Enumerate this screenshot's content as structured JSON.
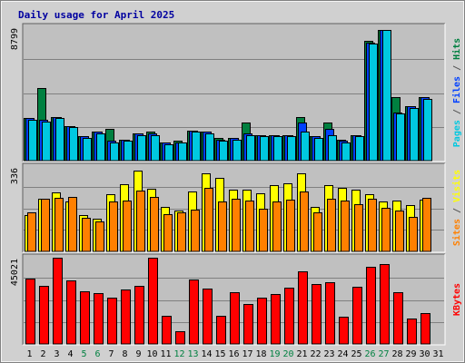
{
  "chart_data": {
    "type": "bar",
    "title": "Daily usage for April 2025",
    "categories": [
      "1",
      "2",
      "3",
      "4",
      "5",
      "6",
      "7",
      "8",
      "9",
      "10",
      "11",
      "12",
      "13",
      "14",
      "15",
      "16",
      "17",
      "18",
      "19",
      "20",
      "21",
      "22",
      "23",
      "24",
      "25",
      "26",
      "27",
      "28",
      "29",
      "30",
      "31"
    ],
    "weekend_days": [
      "5",
      "6",
      "12",
      "13",
      "19",
      "20",
      "26",
      "27"
    ],
    "panels": [
      {
        "id": "hits-files-pages",
        "ymax": 8799,
        "ymax_label": "8799",
        "side_label": [
          {
            "text": "Pages",
            "color": "#00c8e0"
          },
          {
            "text": " / ",
            "color": "#555555"
          },
          {
            "text": "Files",
            "color": "#0040ff"
          },
          {
            "text": " / ",
            "color": "#555555"
          },
          {
            "text": "Hits",
            "color": "#008040"
          }
        ],
        "series": [
          {
            "name": "Hits",
            "color": "#008040",
            "values": [
              2800,
              4800,
              2900,
              2300,
              1600,
              1900,
              2100,
              1400,
              1800,
              1900,
              1200,
              1300,
              2000,
              1900,
              1500,
              1500,
              2500,
              1700,
              1700,
              1700,
              2900,
              1600,
              2500,
              1400,
              1700,
              7900,
              8600,
              4200,
              3600,
              4200,
              0
            ]
          },
          {
            "name": "Files",
            "color": "#0040ff",
            "values": [
              2800,
              2700,
              2900,
              2300,
              1600,
              1900,
              1300,
              1400,
              1800,
              1800,
              1200,
              1200,
              2000,
              1900,
              1400,
              1500,
              1800,
              1700,
              1700,
              1700,
              2500,
              1600,
              2100,
              1300,
              1700,
              7800,
              8600,
              3200,
              3600,
              4200,
              0
            ]
          },
          {
            "name": "Pages",
            "color": "#00c8e0",
            "values": [
              2700,
              2600,
              2800,
              2200,
              1500,
              1800,
              1200,
              1300,
              1700,
              1700,
              1100,
              1200,
              1900,
              1800,
              1300,
              1400,
              1700,
              1600,
              1600,
              1600,
              1900,
              1500,
              1700,
              1200,
              1600,
              7700,
              8600,
              3100,
              3500,
              4100,
              0
            ]
          }
        ]
      },
      {
        "id": "visits-sites",
        "ymax": 336,
        "ymax_label": "336",
        "side_label": [
          {
            "text": "Sites",
            "color": "#ff8000"
          },
          {
            "text": " / ",
            "color": "#555555"
          },
          {
            "text": "Visits",
            "color": "#ffff00"
          }
        ],
        "series": [
          {
            "name": "Visits",
            "color": "#ffff00",
            "values": [
              144,
              210,
              236,
              198,
              145,
              130,
              226,
              268,
              320,
              249,
              177,
              163,
              238,
              312,
              292,
              245,
              244,
              231,
              264,
              270,
              310,
              176,
              264,
              252,
              246,
              229,
              197,
              202,
              185,
              205,
              0
            ]
          },
          {
            "name": "Sites",
            "color": "#ff8000",
            "values": [
              154,
              210,
              214,
              217,
              133,
              120,
              199,
              202,
              241,
              216,
              148,
              154,
              165,
              252,
              199,
              208,
              201,
              170,
              199,
              205,
              240,
              154,
              211,
              204,
              189,
              210,
              174,
              163,
              137,
              214,
              0
            ]
          }
        ]
      },
      {
        "id": "kbytes",
        "ymax": 45021,
        "ymax_label": "45021",
        "side_label": [
          {
            "text": "KBytes",
            "color": "#ff0000"
          }
        ],
        "series": [
          {
            "name": "KBytes",
            "color": "#ff0000",
            "values": [
              34000,
              30500,
              45000,
              33000,
              27500,
              26500,
              24000,
              28500,
              30500,
              45000,
              14500,
              6500,
              33500,
              29000,
              14500,
              27000,
              21000,
              24000,
              26000,
              29500,
              38000,
              31500,
              32000,
              14000,
              30000,
              40500,
              41500,
              27000,
              13500,
              16000,
              0
            ]
          }
        ]
      }
    ],
    "grid": true
  }
}
